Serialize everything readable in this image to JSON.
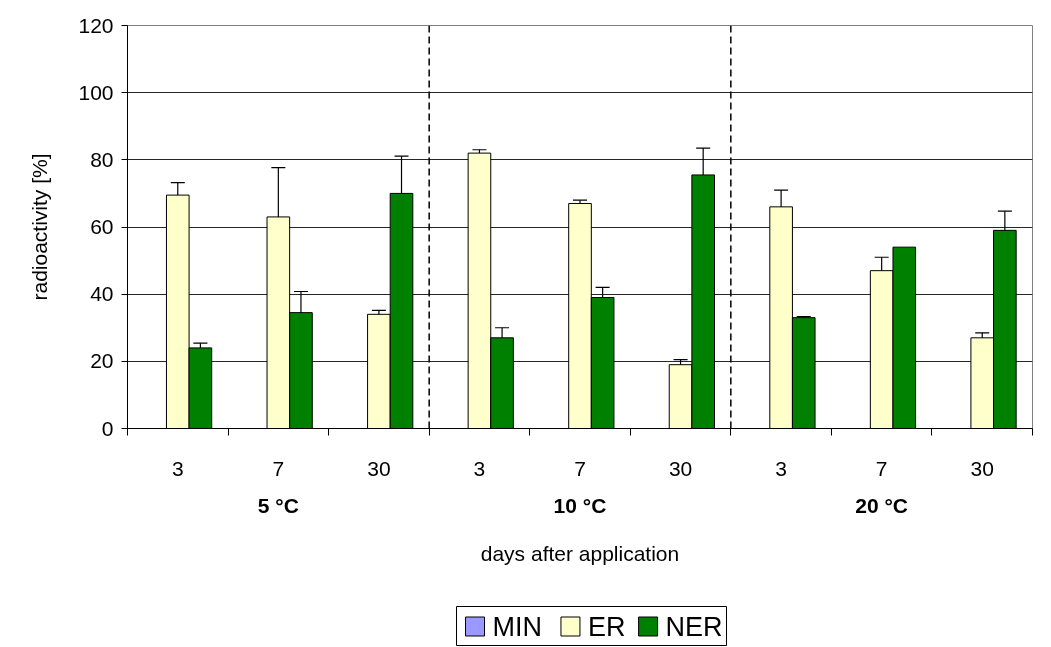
{
  "chart_data": {
    "type": "bar",
    "categories": [
      "3",
      "7",
      "30",
      "3",
      "7",
      "30",
      "3",
      "7",
      "30"
    ],
    "series": [
      {
        "name": "MIN",
        "color": "#9999ff",
        "values": [
          null,
          null,
          null,
          null,
          null,
          null,
          null,
          null,
          null
        ]
      },
      {
        "name": "ER",
        "color": "#ffffcc",
        "values": [
          69.5,
          63,
          34,
          82,
          67,
          19,
          66,
          47,
          27
        ],
        "errors": [
          3.7,
          14.7,
          1.2,
          1,
          1,
          1.5,
          5,
          4,
          1.5
        ]
      },
      {
        "name": "NER",
        "color": "#008000",
        "values": [
          24,
          34.5,
          70,
          27,
          39,
          75.5,
          33,
          54,
          59
        ],
        "errors": [
          1.4,
          6.3,
          11.1,
          3,
          3,
          8,
          0.3,
          null,
          5.7
        ]
      }
    ],
    "xlabel": "days after application",
    "ylabel": "radioactivity [%]",
    "ylim": [
      0,
      120
    ],
    "yticks": [
      0,
      20,
      40,
      60,
      80,
      100,
      120
    ],
    "grid": "y",
    "legend": "bottom",
    "annotations": [
      "5 °C",
      "10 °C",
      "20 °C"
    ]
  }
}
